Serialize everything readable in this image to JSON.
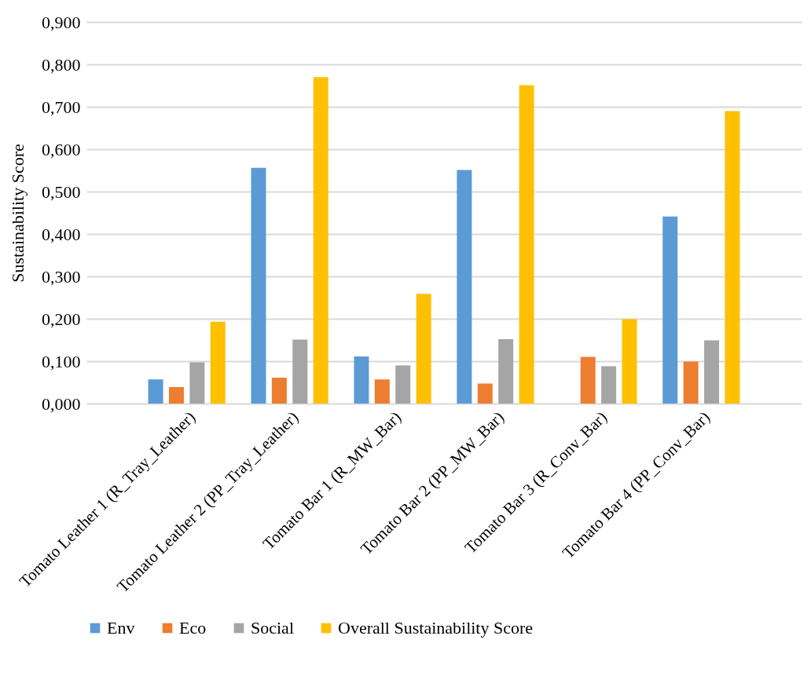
{
  "chart_data": {
    "type": "bar",
    "ylabel": "Sustainability Score",
    "categories": [
      "Tomato Leather 1 (R_Tray_Leather)",
      "Tomato Leather 2 (PP_Tray_Leather)",
      "Tomato Bar 1 (R_MW_Bar)",
      "Tomato Bar 2 (PP_MW_Bar)",
      "Tomato Bar 3 (R_Conv_Bar)",
      "Tomato Bar 4 (PP_Conv_Bar)"
    ],
    "series": [
      {
        "name": "Env",
        "color": "#5b9bd5",
        "values": [
          0.057,
          0.556,
          0.111,
          0.551,
          0,
          0.441
        ]
      },
      {
        "name": "Eco",
        "color": "#ed7d31",
        "values": [
          0.039,
          0.061,
          0.057,
          0.047,
          0.11,
          0.099
        ]
      },
      {
        "name": "Social",
        "color": "#a5a5a5",
        "values": [
          0.097,
          0.151,
          0.09,
          0.152,
          0.088,
          0.149
        ]
      },
      {
        "name": "Overall Sustainability Score",
        "color": "#ffc000",
        "values": [
          0.193,
          0.77,
          0.259,
          0.751,
          0.199,
          0.69
        ]
      }
    ],
    "ylim": [
      0,
      0.9
    ],
    "yticks": [
      {
        "value": 0,
        "label": "0,000"
      },
      {
        "value": 0.1,
        "label": "0,100"
      },
      {
        "value": 0.2,
        "label": "0,200"
      },
      {
        "value": 0.3,
        "label": "0,300"
      },
      {
        "value": 0.4,
        "label": "0,400"
      },
      {
        "value": 0.5,
        "label": "0,500"
      },
      {
        "value": 0.6,
        "label": "0,600"
      },
      {
        "value": 0.7,
        "label": "0,700"
      },
      {
        "value": 0.8,
        "label": "0,800"
      },
      {
        "value": 0.9,
        "label": "0,900"
      }
    ],
    "grid": "y",
    "legend": "bottom"
  }
}
